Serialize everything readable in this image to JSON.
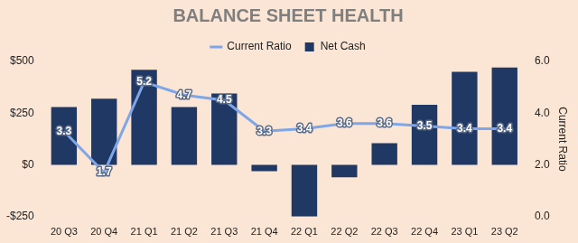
{
  "chart_data": {
    "type": "bar",
    "title": "BALANCE SHEET HEALTH",
    "categories": [
      "20 Q3",
      "20 Q4",
      "21 Q1",
      "21 Q2",
      "21 Q3",
      "21 Q4",
      "22 Q1",
      "22 Q2",
      "22 Q3",
      "22 Q4",
      "23 Q1",
      "23 Q2"
    ],
    "series": [
      {
        "name": "Net Cash",
        "type": "bar",
        "color": "#1f3864",
        "values": [
          280,
          320,
          460,
          280,
          345,
          -30,
          -250,
          -60,
          105,
          290,
          450,
          470
        ]
      },
      {
        "name": "Current Ratio",
        "type": "line",
        "color": "#7ea6e8",
        "axis": "y2",
        "data_labels": true,
        "values": [
          3.3,
          1.7,
          5.2,
          4.7,
          4.5,
          3.3,
          3.4,
          3.6,
          3.6,
          3.5,
          3.4,
          3.4
        ]
      }
    ],
    "y2_label": "Current Ratio",
    "ylim": [
      -250,
      500
    ],
    "yticks": [
      {
        "value": -250,
        "label": "-$250"
      },
      {
        "value": 0,
        "label": "$0"
      },
      {
        "value": 250,
        "label": "$250"
      },
      {
        "value": 500,
        "label": "$500"
      }
    ],
    "y2lim": [
      0,
      6
    ],
    "y2ticks": [
      {
        "value": 0,
        "label": "0.0"
      },
      {
        "value": 2,
        "label": "2.0"
      },
      {
        "value": 4,
        "label": "4.0"
      },
      {
        "value": 6,
        "label": "6.0"
      }
    ],
    "legend": "top",
    "grid": false
  }
}
